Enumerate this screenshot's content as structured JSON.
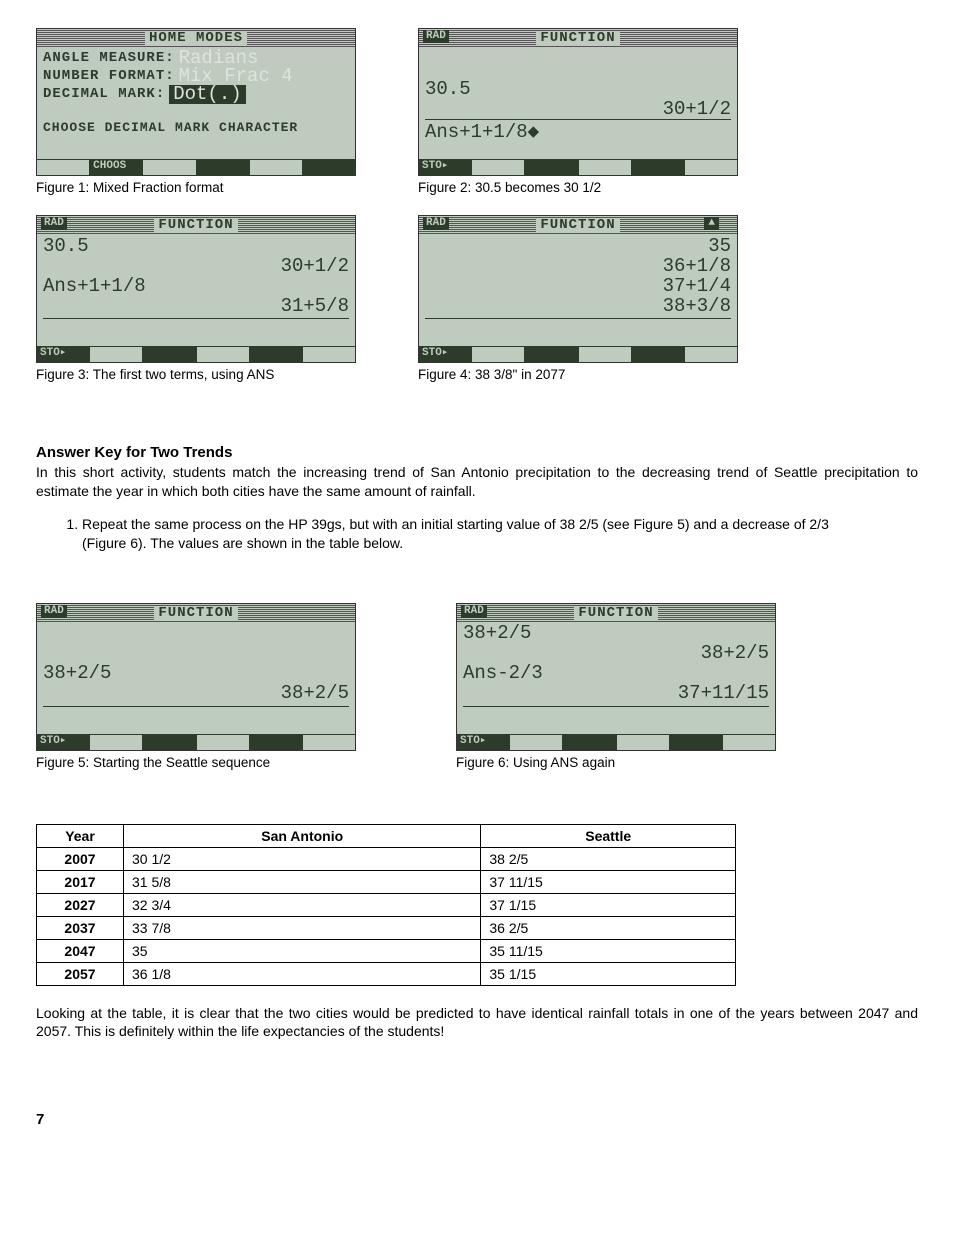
{
  "calc": {
    "color_bg": "#bfcbbe",
    "color_fg": "#2d3b2b",
    "color_highlight": "#dde4db"
  },
  "fig1": {
    "title": "HOME MODES",
    "l1_label": "ANGLE MEASURE:",
    "l1_val": "Radians",
    "l2_label": "NUMBER FORMAT:",
    "l2_val": "Mix Frac 4",
    "l3_label": "DECIMAL MARK:",
    "l3_val": "Dot(.)",
    "help": "CHOOSE DECIMAL MARK CHARACTER",
    "menu1": "CHOOS",
    "caption": "Figure 1: Mixed Fraction format"
  },
  "fig2": {
    "badge": "RAD",
    "title": "FUNCTION",
    "l1": "30.5",
    "r1": "30+1/2",
    "l2": "Ans+1+1/8◆",
    "menu1": "STO▸",
    "caption": "Figure 2: 30.5 becomes 30 1/2"
  },
  "fig3": {
    "badge": "RAD",
    "title": "FUNCTION",
    "l1": "30.5",
    "r1": "30+1/2",
    "l2": "Ans+1+1/8",
    "r2": "31+5/8",
    "menu1": "STO▸",
    "caption": "Figure 3: The first two terms, using ANS"
  },
  "fig4": {
    "badge": "RAD",
    "title": "FUNCTION",
    "badge_right": "▲",
    "r0": "35",
    "r1": "36+1/8",
    "r2": "37+1/4",
    "r3": "38+3/8",
    "menu1": "STO▸",
    "caption": "Figure 4: 38 3/8\" in 2077"
  },
  "fig5": {
    "badge": "RAD",
    "title": "FUNCTION",
    "l1": "38+2/5",
    "r1": "38+2/5",
    "menu1": "STO▸",
    "caption": "Figure 5: Starting the Seattle sequence"
  },
  "fig6": {
    "badge": "RAD",
    "title": "FUNCTION",
    "l1": "38+2/5",
    "r1": "38+2/5",
    "l2": "Ans-2/3",
    "r2": "37+11/15",
    "menu1": "STO▸",
    "caption": "Figure 6: Using ANS again"
  },
  "section": {
    "heading": "Answer Key for Two Trends",
    "intro": "In this short activity, students match the increasing trend of San Antonio precipitation to the decreasing trend of Seattle precipitation to estimate the year in which both cities have the same amount of rainfall.",
    "step1": "Repeat the same process on the HP 39gs, but with an initial starting value of 38 2/5 (see Figure 5) and a decrease of 2/3 (Figure 6).  The values are shown in the table below."
  },
  "table": {
    "headers": [
      "Year",
      "San Antonio",
      "Seattle"
    ],
    "rows": [
      [
        "2007",
        "30 1/2",
        "38 2/5"
      ],
      [
        "2017",
        "31 5/8",
        "37 11/15"
      ],
      [
        "2027",
        "32 3/4",
        "37 1/15"
      ],
      [
        "2037",
        "33 7/8",
        "36 2/5"
      ],
      [
        "2047",
        "35",
        "35 11/15"
      ],
      [
        "2057",
        "36 1/8",
        "35 1/15"
      ]
    ]
  },
  "closing": "Looking at the table, it is clear that the two cities would be predicted to have identical rainfall totals in one of the years between 2047 and 2057.  This is definitely within the life expectancies of the students!",
  "page_number": "7"
}
